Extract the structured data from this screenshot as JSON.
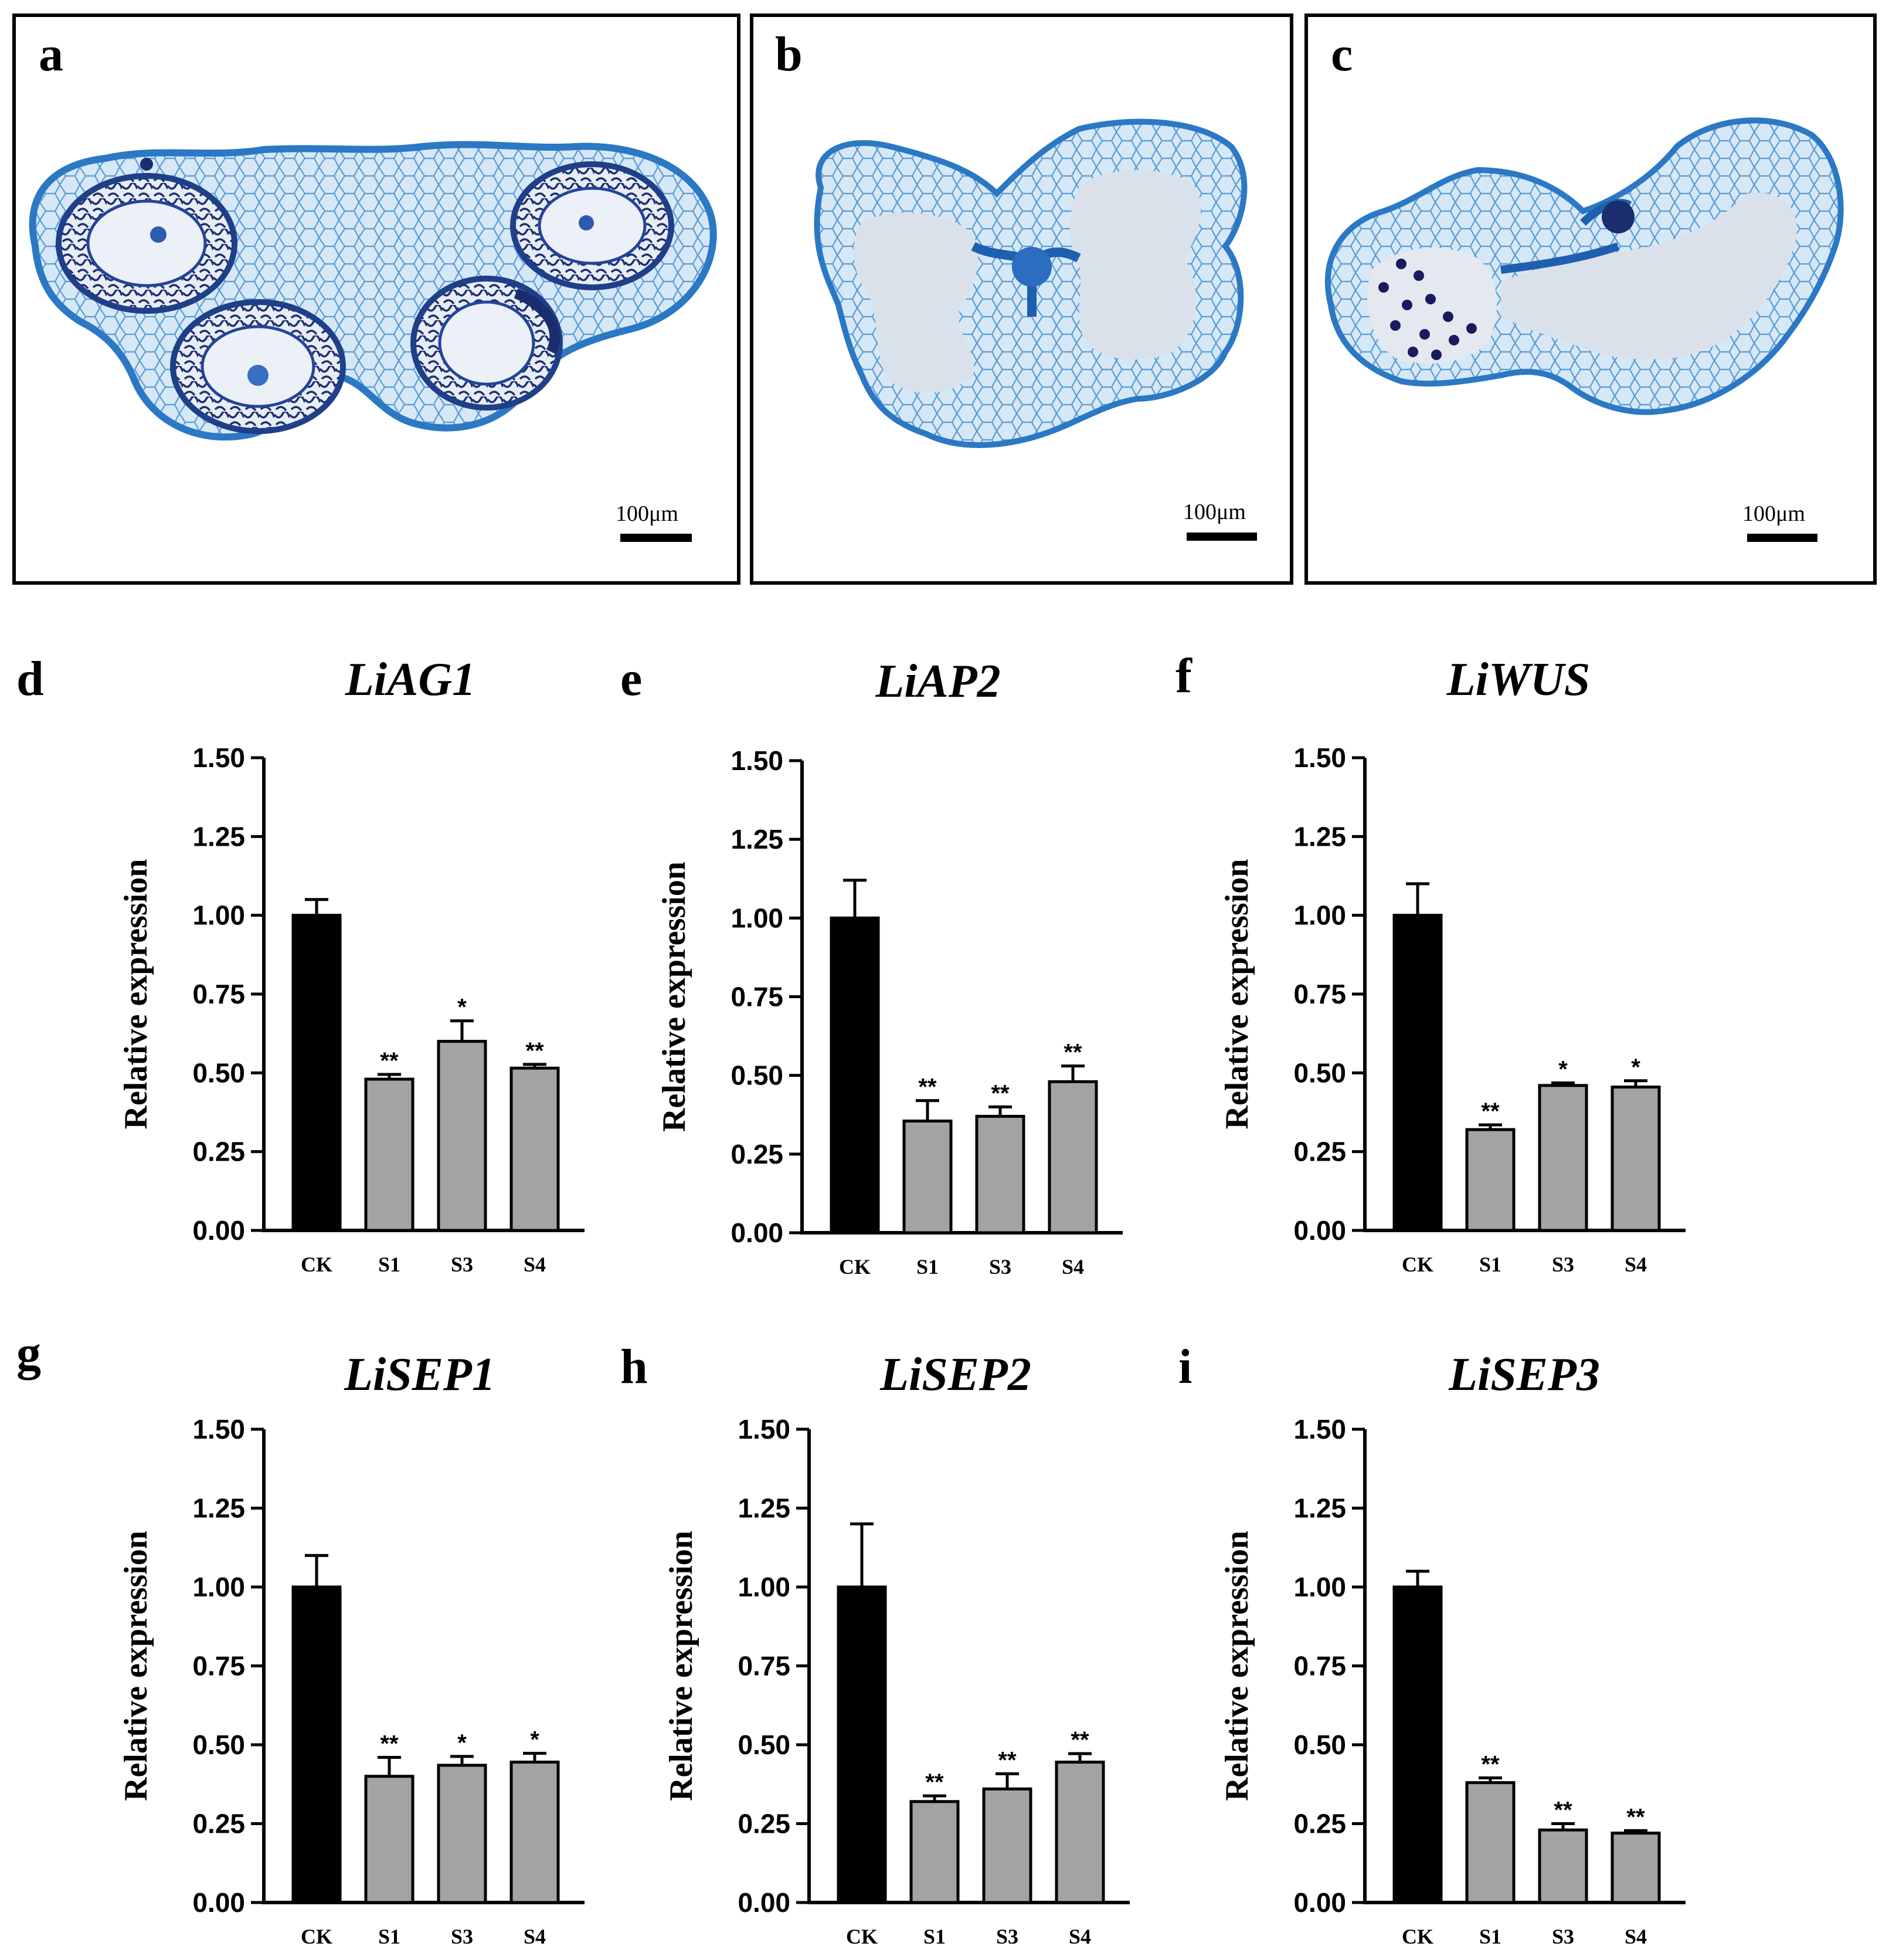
{
  "micrographs": [
    {
      "panel": "a",
      "scale_bar": "100μm",
      "stain": "#2f7fc8",
      "cell_fill": "#cfe3f4",
      "dark_stain": "#1a2d6e"
    },
    {
      "panel": "b",
      "scale_bar": "100μm",
      "stain": "#2f7fc8",
      "cell_fill": "#cfe3f4",
      "dark_stain": "#1a2d6e"
    },
    {
      "panel": "c",
      "scale_bar": "100μm",
      "stain": "#2f7fc8",
      "cell_fill": "#cfe3f4",
      "dark_stain": "#1a2d6e"
    }
  ],
  "colors": {
    "ck_bar": "#000000",
    "treatment_bar": "#a3a3a6",
    "axis": "#000000"
  },
  "chart_data": [
    {
      "panel": "d",
      "type": "bar",
      "title": "LiAG1",
      "ylabel": "Relative expression",
      "categories": [
        "CK",
        "S1",
        "S3",
        "S4"
      ],
      "values": [
        1.0,
        0.48,
        0.6,
        0.515
      ],
      "errors": [
        0.05,
        0.015,
        0.065,
        0.012
      ],
      "significance": [
        "",
        "**",
        "*",
        "**"
      ],
      "yticks": [
        "0.00",
        "0.25",
        "0.50",
        "0.75",
        "1.00",
        "1.25",
        "1.50"
      ],
      "ylim": [
        0,
        1.5
      ]
    },
    {
      "panel": "e",
      "type": "bar",
      "title": "LiAP2",
      "ylabel": "Relative expression",
      "categories": [
        "CK",
        "S1",
        "S3",
        "S4"
      ],
      "values": [
        1.0,
        0.355,
        0.37,
        0.48
      ],
      "errors": [
        0.12,
        0.065,
        0.03,
        0.05
      ],
      "significance": [
        "",
        "**",
        "**",
        "**"
      ],
      "yticks": [
        "0.00",
        "0.25",
        "0.50",
        "0.75",
        "1.00",
        "1.25",
        "1.50"
      ],
      "ylim": [
        0,
        1.5
      ]
    },
    {
      "panel": "f",
      "type": "bar",
      "title": "LiWUS",
      "ylabel": "Relative expression",
      "categories": [
        "CK",
        "S1",
        "S3",
        "S4"
      ],
      "values": [
        1.0,
        0.32,
        0.46,
        0.455
      ],
      "errors": [
        0.1,
        0.015,
        0.008,
        0.02
      ],
      "significance": [
        "",
        "**",
        "*",
        "*"
      ],
      "yticks": [
        "0.00",
        "0.25",
        "0.50",
        "0.75",
        "1.00",
        "1.25",
        "1.50"
      ],
      "ylim": [
        0,
        1.5
      ]
    },
    {
      "panel": "g",
      "type": "bar",
      "title": "LiSEP1",
      "ylabel": "Relative expression",
      "categories": [
        "CK",
        "S1",
        "S3",
        "S4"
      ],
      "values": [
        1.0,
        0.4,
        0.435,
        0.445
      ],
      "errors": [
        0.1,
        0.06,
        0.028,
        0.028
      ],
      "significance": [
        "",
        "**",
        "*",
        "*"
      ],
      "yticks": [
        "0.00",
        "0.25",
        "0.50",
        "0.75",
        "1.00",
        "1.25",
        "1.50"
      ],
      "ylim": [
        0,
        1.5
      ]
    },
    {
      "panel": "h",
      "type": "bar",
      "title": "LiSEP2",
      "ylabel": "Relative expression",
      "categories": [
        "CK",
        "S1",
        "S3",
        "S4"
      ],
      "values": [
        1.0,
        0.32,
        0.36,
        0.445
      ],
      "errors": [
        0.2,
        0.018,
        0.048,
        0.027
      ],
      "significance": [
        "",
        "**",
        "**",
        "**"
      ],
      "yticks": [
        "0.00",
        "0.25",
        "0.50",
        "0.75",
        "1.00",
        "1.25",
        "1.50"
      ],
      "ylim": [
        0,
        1.5
      ]
    },
    {
      "panel": "i",
      "type": "bar",
      "title": "LiSEP3",
      "ylabel": "Relative expression",
      "categories": [
        "CK",
        "S1",
        "S3",
        "S4"
      ],
      "values": [
        1.0,
        0.38,
        0.23,
        0.22
      ],
      "errors": [
        0.05,
        0.015,
        0.02,
        0.008
      ],
      "significance": [
        "",
        "**",
        "**",
        "**"
      ],
      "yticks": [
        "0.00",
        "0.25",
        "0.50",
        "0.75",
        "1.00",
        "1.25",
        "1.50"
      ],
      "ylim": [
        0,
        1.5
      ]
    }
  ]
}
